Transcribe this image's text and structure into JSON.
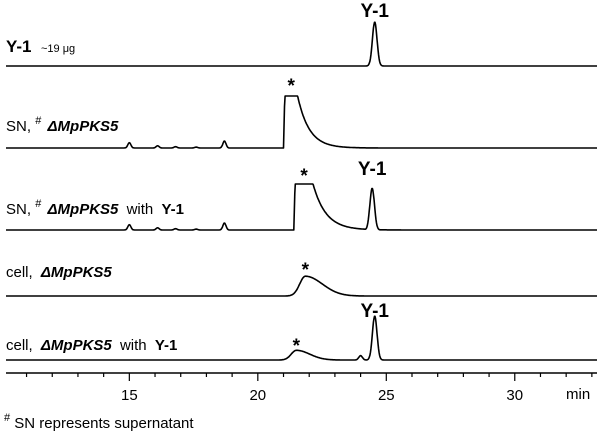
{
  "chart_data": {
    "type": "line",
    "xlabel": "min",
    "xlim": [
      10.2,
      33.2
    ],
    "xticks_major": [
      15,
      20,
      25,
      30
    ],
    "xticks_minor": [
      11,
      12,
      13,
      14,
      16,
      17,
      18,
      19,
      21,
      22,
      23,
      24,
      26,
      27,
      28,
      29,
      31,
      32,
      33
    ],
    "peak_label_text": "Y-1",
    "saturated_peak_marker": "*",
    "footnote": {
      "mark": "#",
      "text": "SN represents supernatant"
    },
    "series": [
      {
        "label": {
          "compound": "Y-1",
          "amount": "~19 μg"
        },
        "peaks": [
          {
            "x": 24.55,
            "h": 1.0,
            "w": 0.09,
            "tail": 0
          }
        ],
        "peak_labels": []
      },
      {
        "label": {
          "prefix": "SN,",
          "mark": "#",
          "strain": "ΔMpPKS5",
          "with": "",
          "added": ""
        },
        "peaks": [
          {
            "x": 15.0,
            "h": 0.12,
            "w": 0.06,
            "tail": 0
          },
          {
            "x": 16.1,
            "h": 0.05,
            "w": 0.06,
            "tail": 0
          },
          {
            "x": 16.8,
            "h": 0.03,
            "w": 0.06,
            "tail": 0
          },
          {
            "x": 17.6,
            "h": 0.02,
            "w": 0.06,
            "tail": 0
          },
          {
            "x": 18.7,
            "h": 0.16,
            "w": 0.06,
            "tail": 0
          }
        ],
        "saturated_peak": {
          "start": 21.05,
          "end": 21.55,
          "tail": 0.45
        },
        "peak_labels": [
          {
            "x": 21.3,
            "text": "*"
          }
        ]
      },
      {
        "label": {
          "prefix": "SN,",
          "mark": "#",
          "strain": "ΔMpPKS5",
          "with": "with",
          "added": "Y-1"
        },
        "peaks": [
          {
            "x": 15.0,
            "h": 0.12,
            "w": 0.06,
            "tail": 0
          },
          {
            "x": 16.1,
            "h": 0.05,
            "w": 0.06,
            "tail": 0
          },
          {
            "x": 16.8,
            "h": 0.03,
            "w": 0.06,
            "tail": 0
          },
          {
            "x": 17.6,
            "h": 0.02,
            "w": 0.06,
            "tail": 0
          },
          {
            "x": 18.7,
            "h": 0.16,
            "w": 0.06,
            "tail": 0
          },
          {
            "x": 23.0,
            "h": 0.04,
            "w": 0.08,
            "tail": 0
          },
          {
            "x": 24.45,
            "h": 0.95,
            "w": 0.09,
            "tail": 0
          }
        ],
        "saturated_peak": {
          "start": 21.45,
          "end": 22.15,
          "tail": 0.5
        },
        "peak_labels": [
          {
            "x": 21.8,
            "text": "*"
          },
          {
            "x": 24.45,
            "text": "Y-1"
          }
        ]
      },
      {
        "label": {
          "prefix": "cell,",
          "mark": "",
          "strain": "ΔMpPKS5",
          "with": "",
          "added": ""
        },
        "peaks": [
          {
            "x": 21.85,
            "h": 0.45,
            "w": 0.22,
            "tail": 0.5
          }
        ],
        "peak_labels": [
          {
            "x": 21.85,
            "text": "*"
          }
        ]
      },
      {
        "label": {
          "prefix": "cell,",
          "mark": "",
          "strain": "ΔMpPKS5",
          "with": "with",
          "added": "Y-1"
        },
        "peaks": [
          {
            "x": 21.5,
            "h": 0.22,
            "w": 0.2,
            "tail": 0.4
          },
          {
            "x": 24.0,
            "h": 0.1,
            "w": 0.07,
            "tail": 0
          },
          {
            "x": 24.55,
            "h": 1.0,
            "w": 0.09,
            "tail": 0
          }
        ],
        "peak_labels": [
          {
            "x": 21.5,
            "text": "*"
          },
          {
            "x": 24.55,
            "text": "Y-1"
          }
        ]
      }
    ]
  }
}
